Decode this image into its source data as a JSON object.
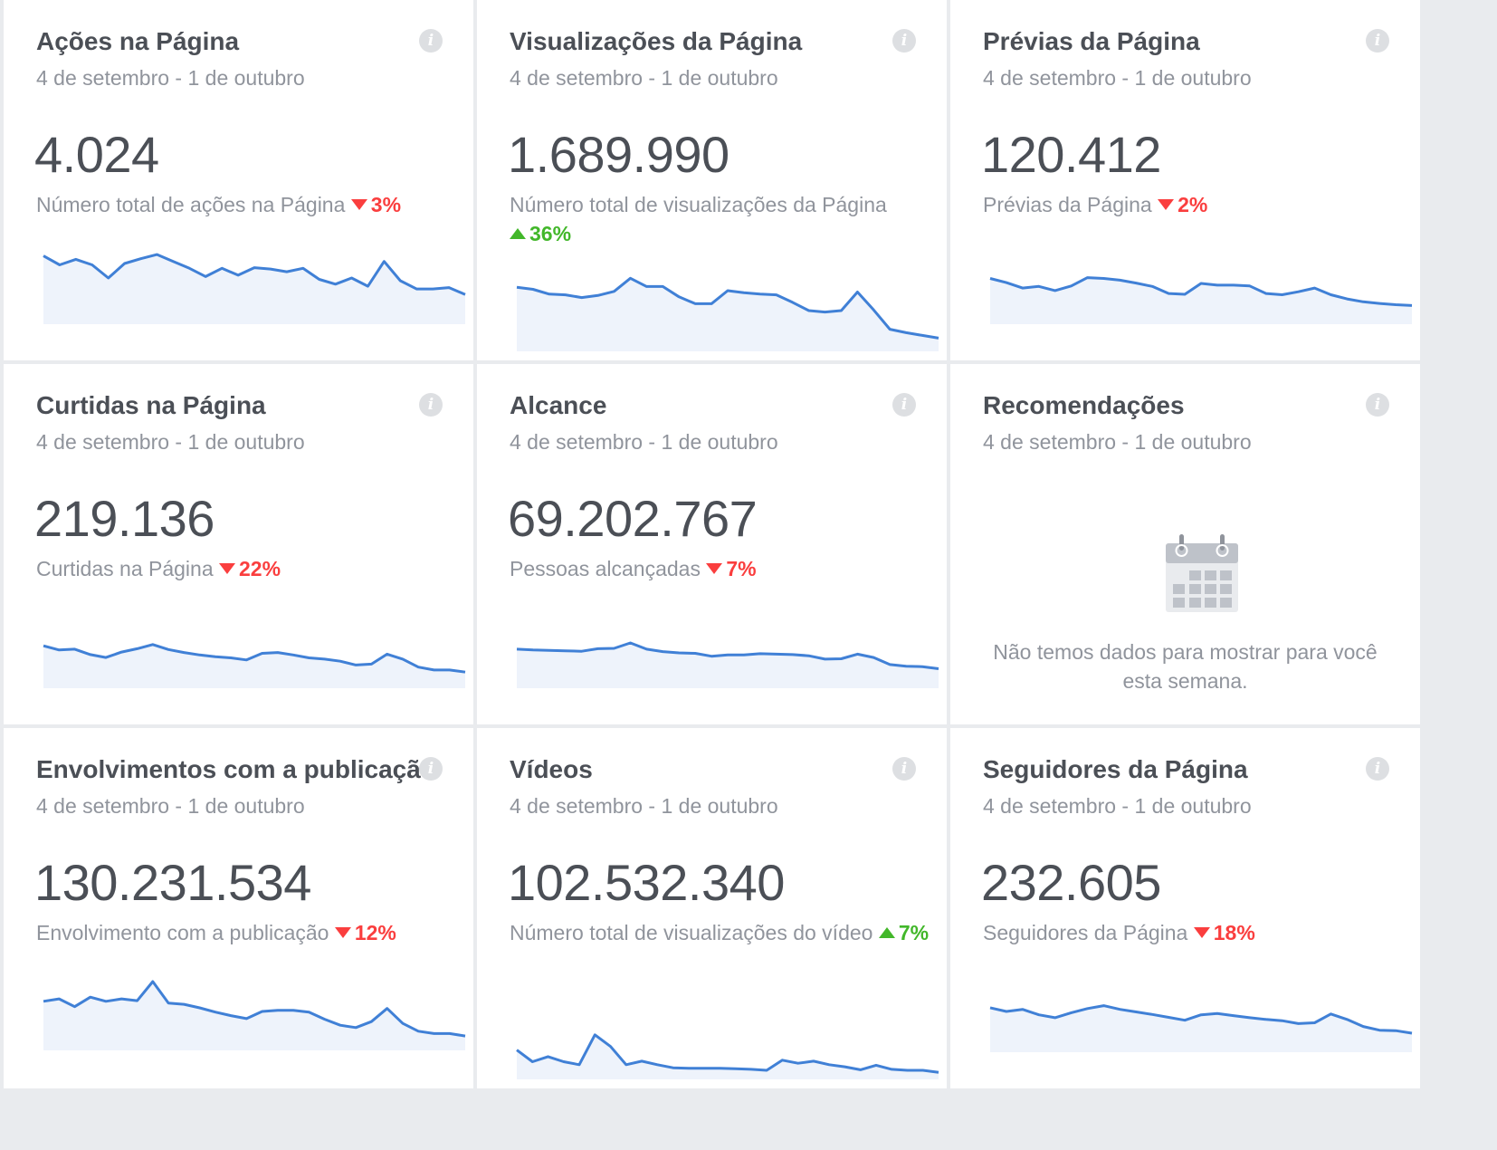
{
  "colors": {
    "title": "#4b4f56",
    "muted": "#90949c",
    "down": "#fa3e3e",
    "up": "#42b72a",
    "line": "#4080d6",
    "fill": "#eef3fb"
  },
  "cards": [
    {
      "title": "Ações na Página",
      "date_range": "4 de setembro - 1 de outubro",
      "value": "4.024",
      "description": "Número total de ações na Página",
      "change": "3%",
      "direction": "down",
      "trend": [
        0.86,
        0.73,
        0.81,
        0.73,
        0.54,
        0.75,
        0.82,
        0.88,
        0.78,
        0.68,
        0.56,
        0.68,
        0.58,
        0.69,
        0.67,
        0.63,
        0.68,
        0.52,
        0.45,
        0.54,
        0.42,
        0.78,
        0.5,
        0.38,
        0.38,
        0.4,
        0.3
      ]
    },
    {
      "title": "Visualizações da Página",
      "date_range": "4 de setembro - 1 de outubro",
      "value": "1.689.990",
      "description": "Número total de visualizações da Página",
      "change": "36%",
      "direction": "up",
      "trend": [
        0.8,
        0.77,
        0.7,
        0.69,
        0.65,
        0.68,
        0.74,
        0.93,
        0.81,
        0.81,
        0.66,
        0.56,
        0.56,
        0.75,
        0.72,
        0.7,
        0.69,
        0.58,
        0.46,
        0.44,
        0.46,
        0.73,
        0.47,
        0.19,
        0.14,
        0.1,
        0.06
      ]
    },
    {
      "title": "Prévias da Página",
      "date_range": "4 de setembro - 1 de outubro",
      "value": "120.412",
      "description": "Prévias da Página",
      "change": "2%",
      "direction": "down",
      "trend": [
        0.88,
        0.78,
        0.65,
        0.69,
        0.59,
        0.7,
        0.9,
        0.88,
        0.84,
        0.77,
        0.69,
        0.52,
        0.5,
        0.76,
        0.72,
        0.72,
        0.7,
        0.52,
        0.49,
        0.56,
        0.65,
        0.49,
        0.39,
        0.32,
        0.28,
        0.25,
        0.23
      ]
    },
    {
      "title": "Curtidas na Página",
      "date_range": "4 de setembro - 1 de outubro",
      "value": "219.136",
      "description": "Curtidas na Página",
      "change": "22%",
      "direction": "down",
      "trend": [
        0.8,
        0.7,
        0.72,
        0.59,
        0.52,
        0.65,
        0.73,
        0.83,
        0.71,
        0.64,
        0.58,
        0.54,
        0.51,
        0.46,
        0.62,
        0.64,
        0.58,
        0.51,
        0.48,
        0.43,
        0.34,
        0.36,
        0.6,
        0.48,
        0.29,
        0.22,
        0.22,
        0.17
      ]
    },
    {
      "title": "Alcance",
      "date_range": "4 de setembro - 1 de outubro",
      "value": "69.202.767",
      "description": "Pessoas alcançadas",
      "change": "7%",
      "direction": "down",
      "trend": [
        0.72,
        0.7,
        0.69,
        0.68,
        0.67,
        0.73,
        0.74,
        0.87,
        0.72,
        0.66,
        0.63,
        0.62,
        0.55,
        0.58,
        0.58,
        0.61,
        0.6,
        0.59,
        0.56,
        0.48,
        0.49,
        0.6,
        0.52,
        0.35,
        0.31,
        0.3,
        0.25
      ]
    },
    {
      "title": "Recomendações",
      "date_range": "4 de setembro - 1 de outubro",
      "empty_message": "Não temos dados para mostrar para você esta semana."
    },
    {
      "title": "Envolvimentos com a publicação",
      "date_range": "4 de setembro - 1 de outubro",
      "value": "130.231.534",
      "description": "Envolvimento com a publicação",
      "change": "12%",
      "direction": "down",
      "trend": [
        0.67,
        0.71,
        0.58,
        0.74,
        0.67,
        0.71,
        0.68,
        1.0,
        0.64,
        0.62,
        0.56,
        0.49,
        0.43,
        0.38,
        0.5,
        0.52,
        0.52,
        0.49,
        0.37,
        0.27,
        0.23,
        0.33,
        0.55,
        0.3,
        0.17,
        0.13,
        0.13,
        0.09
      ]
    },
    {
      "title": "Vídeos",
      "date_range": "4 de setembro - 1 de outubro",
      "value": "102.532.340",
      "description": "Número total de visualizações do vídeo",
      "change": "7%",
      "direction": "up",
      "trend": [
        0.4,
        0.17,
        0.27,
        0.17,
        0.11,
        0.7,
        0.47,
        0.11,
        0.18,
        0.11,
        0.05,
        0.04,
        0.04,
        0.04,
        0.03,
        0.02,
        0.0,
        0.2,
        0.14,
        0.18,
        0.11,
        0.07,
        0.01,
        0.1,
        0.02,
        0.0,
        0.0,
        -0.04
      ]
    },
    {
      "title": "Seguidores da Página",
      "date_range": "4 de setembro - 1 de outubro",
      "value": "232.605",
      "description": "Seguidores da Página",
      "change": "18%",
      "direction": "down",
      "trend": [
        0.85,
        0.76,
        0.81,
        0.68,
        0.61,
        0.73,
        0.83,
        0.9,
        0.81,
        0.75,
        0.69,
        0.62,
        0.55,
        0.68,
        0.71,
        0.66,
        0.61,
        0.57,
        0.54,
        0.47,
        0.49,
        0.7,
        0.57,
        0.4,
        0.31,
        0.3,
        0.24
      ]
    }
  ]
}
